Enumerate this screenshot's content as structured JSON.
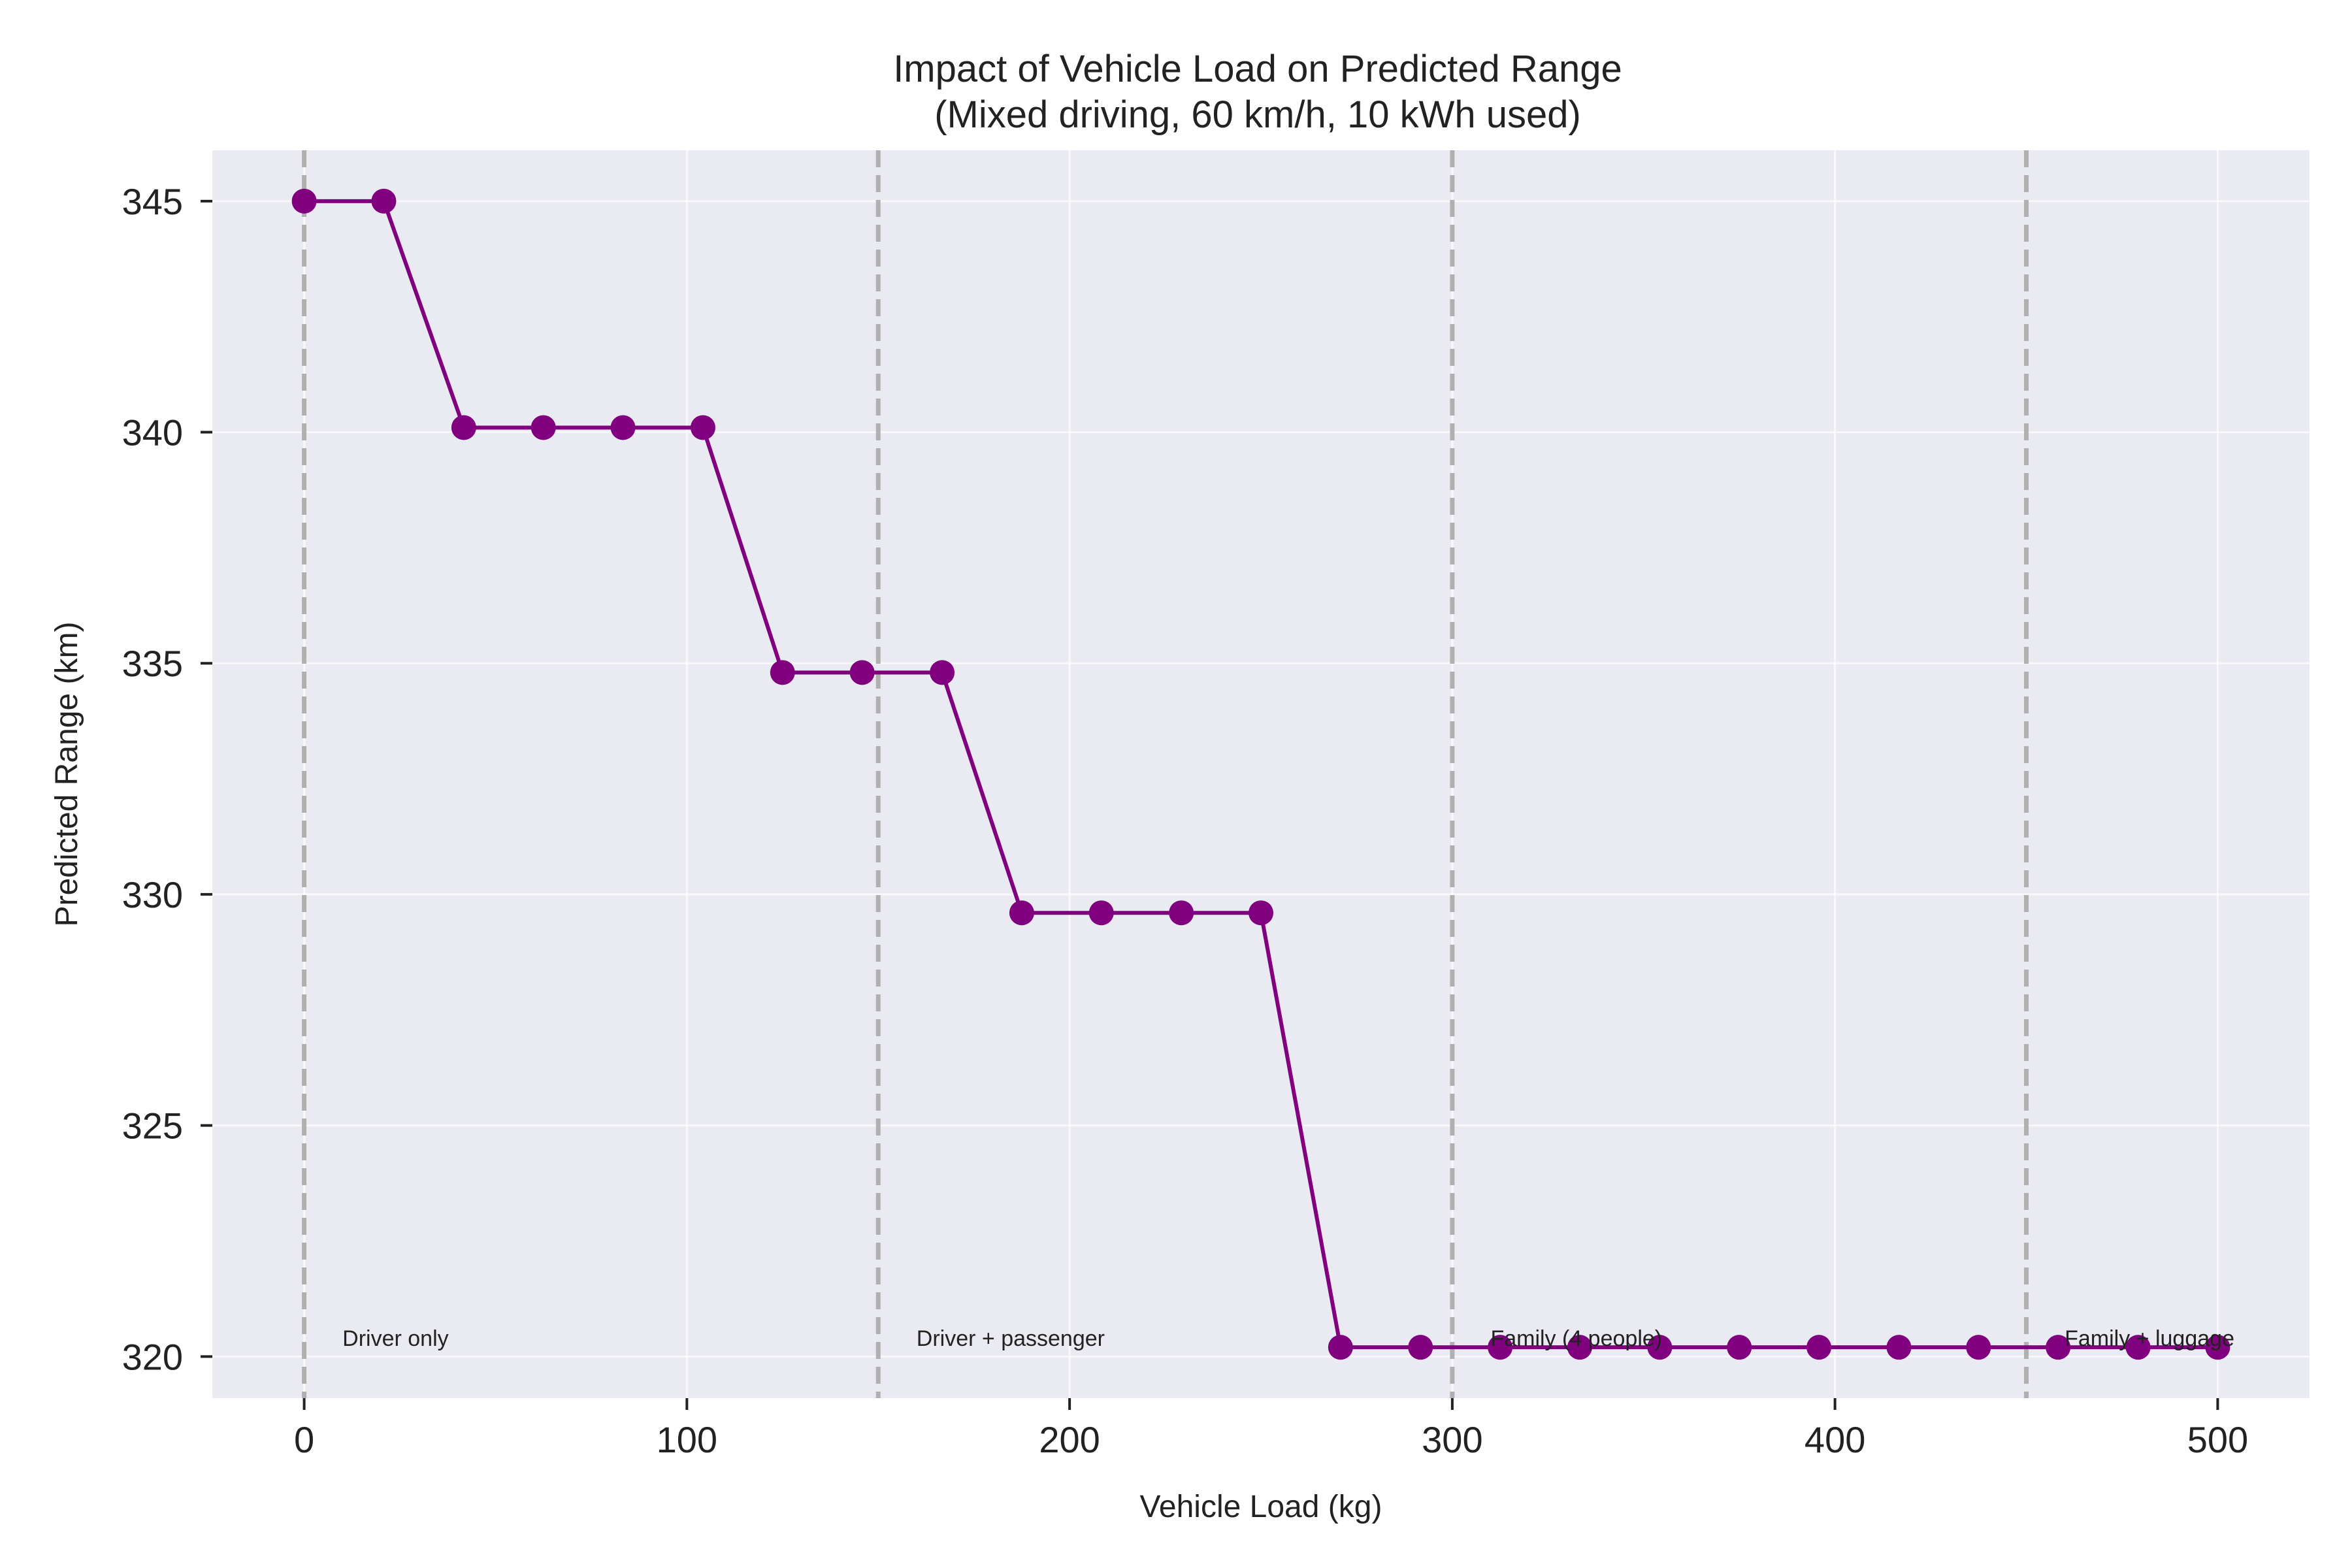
{
  "chart_data": {
    "type": "line",
    "title": "Impact of Vehicle Load on Predicted Range",
    "subtitle": "(Mixed driving, 60 km/h, 10 kWh used)",
    "xlabel": "Vehicle Load (kg)",
    "ylabel": "Predicted Range (km)",
    "xlim": [
      -24,
      524
    ],
    "ylim": [
      319.1,
      346.1
    ],
    "xticks": [
      0,
      100,
      200,
      300,
      400,
      500
    ],
    "yticks": [
      320,
      325,
      330,
      335,
      340,
      345
    ],
    "grid": true,
    "line_color": "#800080",
    "background_color": "#eaeaf2",
    "series": [
      {
        "x": [
          0,
          20.8,
          41.7,
          62.5,
          83.3,
          104.2,
          125,
          145.8,
          166.7,
          187.5,
          208.3,
          229.2,
          250,
          270.8,
          291.7,
          312.5,
          333.3,
          354.2,
          375,
          395.8,
          416.7,
          437.5,
          458.3,
          479.2,
          500
        ],
        "y": [
          345.0,
          345.0,
          340.1,
          340.1,
          340.1,
          340.1,
          334.8,
          334.8,
          334.8,
          329.6,
          329.6,
          329.6,
          329.6,
          320.2,
          320.2,
          320.2,
          320.2,
          320.2,
          320.2,
          320.2,
          320.2,
          320.2,
          320.2,
          320.2,
          320.2
        ]
      }
    ],
    "reference_lines": [
      {
        "x": 0,
        "label": "Driver only"
      },
      {
        "x": 150,
        "label": "Driver + passenger"
      },
      {
        "x": 300,
        "label": "Family (4 people)"
      },
      {
        "x": 450,
        "label": "Family + luggage"
      }
    ],
    "reference_line_color": "#b0b0b0"
  }
}
